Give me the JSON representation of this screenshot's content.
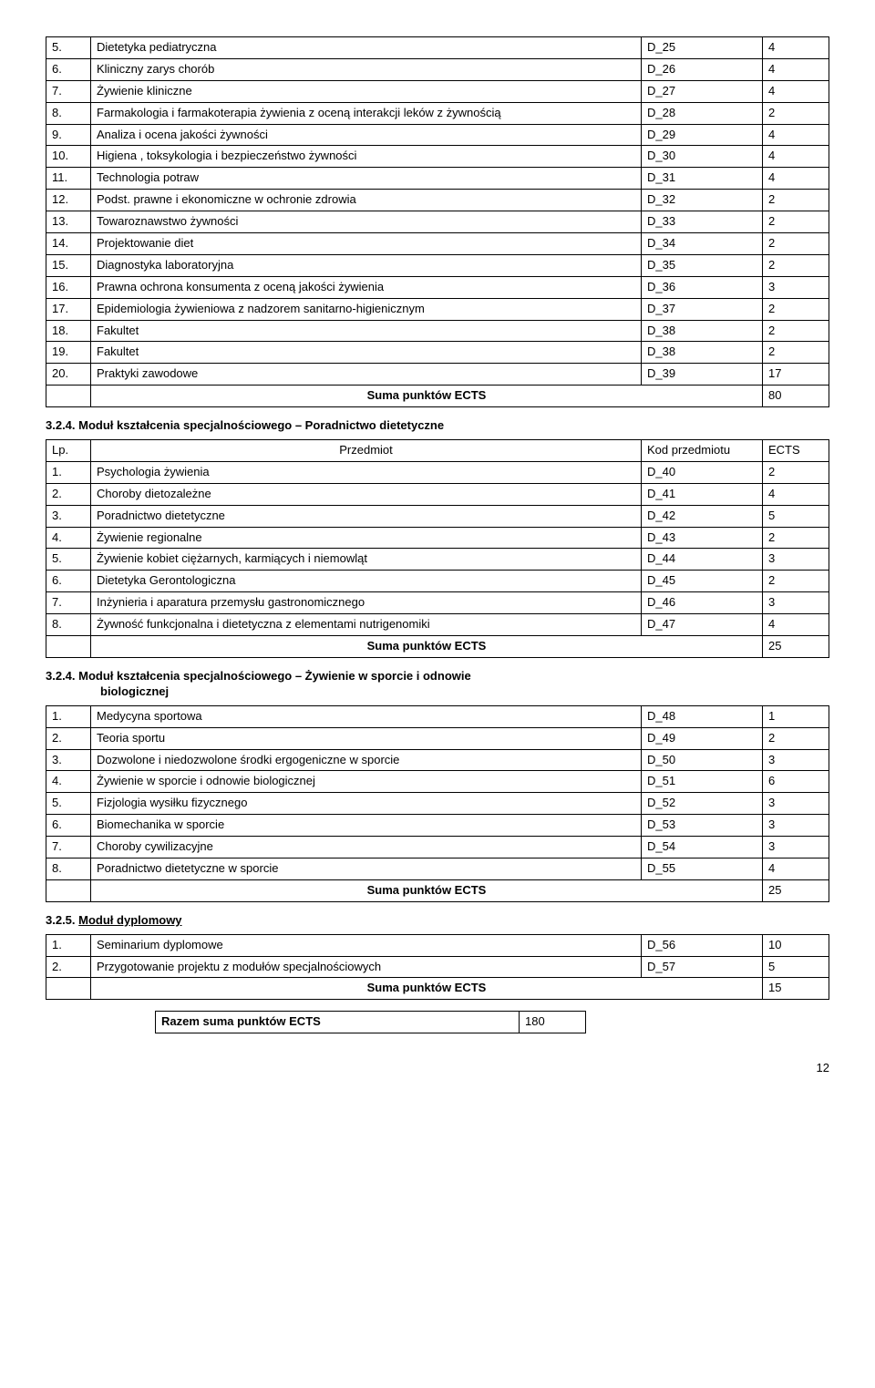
{
  "tables": {
    "t1": {
      "rows": [
        {
          "n": "5.",
          "name": "Dietetyka pediatryczna",
          "code": "D_25",
          "val": "4"
        },
        {
          "n": "6.",
          "name": "Kliniczny zarys chorób",
          "code": "D_26",
          "val": "4"
        },
        {
          "n": "7.",
          "name": "Żywienie kliniczne",
          "code": "D_27",
          "val": "4"
        },
        {
          "n": "8.",
          "name": "Farmakologia i farmakoterapia żywienia z oceną interakcji leków z żywnością",
          "code": "D_28",
          "val": "2"
        },
        {
          "n": "9.",
          "name": "Analiza i ocena jakości żywności",
          "code": "D_29",
          "val": "4"
        },
        {
          "n": "10.",
          "name": "Higiena , toksykologia i bezpieczeństwo żywności",
          "code": "D_30",
          "val": "4"
        },
        {
          "n": "11.",
          "name": "Technologia potraw",
          "code": "D_31",
          "val": "4"
        },
        {
          "n": "12.",
          "name": "Podst. prawne i ekonomiczne w ochronie zdrowia",
          "code": "D_32",
          "val": "2"
        },
        {
          "n": "13.",
          "name": "Towaroznawstwo żywności",
          "code": "D_33",
          "val": "2"
        },
        {
          "n": "14.",
          "name": "Projektowanie diet",
          "code": "D_34",
          "val": "2"
        },
        {
          "n": "15.",
          "name": "Diagnostyka laboratoryjna",
          "code": "D_35",
          "val": "2"
        },
        {
          "n": "16.",
          "name": "Prawna ochrona konsumenta z oceną jakości żywienia",
          "code": "D_36",
          "val": "3"
        },
        {
          "n": "17.",
          "name": "Epidemiologia żywieniowa z nadzorem sanitarno-higienicznym",
          "code": "D_37",
          "val": "2"
        },
        {
          "n": "18.",
          "name": "Fakultet",
          "code": "D_38",
          "val": "2"
        },
        {
          "n": "19.",
          "name": "Fakultet",
          "code": "D_38",
          "val": "2"
        },
        {
          "n": "20.",
          "name": "Praktyki zawodowe",
          "code": "D_39",
          "val": "17"
        }
      ],
      "sum_label": "Suma punktów ECTS",
      "sum_val": "80"
    },
    "t2": {
      "heading_prefix": "3.2.4.",
      "heading_rest": "Moduł kształcenia specjalnościowego – Poradnictwo dietetyczne",
      "header": {
        "lp": "Lp.",
        "przedmiot": "Przedmiot",
        "kod": "Kod przedmiotu",
        "ects": "ECTS"
      },
      "rows": [
        {
          "n": "1.",
          "name": "Psychologia żywienia",
          "code": "D_40",
          "val": "2"
        },
        {
          "n": "2.",
          "name": "Choroby dietozależne",
          "code": "D_41",
          "val": "4"
        },
        {
          "n": "3.",
          "name": "Poradnictwo dietetyczne",
          "code": "D_42",
          "val": "5"
        },
        {
          "n": "4.",
          "name": "Żywienie regionalne",
          "code": "D_43",
          "val": "2"
        },
        {
          "n": "5.",
          "name": "Żywienie kobiet ciężarnych, karmiących i niemowląt",
          "code": "D_44",
          "val": "3"
        },
        {
          "n": "6.",
          "name": "Dietetyka Gerontologiczna",
          "code": "D_45",
          "val": "2"
        },
        {
          "n": "7.",
          "name": "Inżynieria i aparatura przemysłu gastronomicznego",
          "code": "D_46",
          "val": "3"
        },
        {
          "n": "8.",
          "name": "Żywność funkcjonalna i dietetyczna z elementami nutrigenomiki",
          "code": "D_47",
          "val": "4"
        }
      ],
      "sum_label": "Suma punktów ECTS",
      "sum_val": "25"
    },
    "t3": {
      "heading_prefix": "3.2.4.",
      "heading_line1": "Moduł kształcenia specjalnościowego – Żywienie w sporcie i odnowie",
      "heading_line2": "biologicznej",
      "rows": [
        {
          "n": "1.",
          "name": "Medycyna sportowa",
          "code": "D_48",
          "val": "1"
        },
        {
          "n": "2.",
          "name": "Teoria sportu",
          "code": "D_49",
          "val": "2"
        },
        {
          "n": "3.",
          "name": "Dozwolone i niedozwolone środki ergogeniczne w sporcie",
          "code": "D_50",
          "val": "3"
        },
        {
          "n": "4.",
          "name": "Żywienie w sporcie i odnowie biologicznej",
          "code": "D_51",
          "val": "6"
        },
        {
          "n": "5.",
          "name": "Fizjologia wysiłku fizycznego",
          "code": "D_52",
          "val": "3"
        },
        {
          "n": "6.",
          "name": "Biomechanika w sporcie",
          "code": "D_53",
          "val": "3"
        },
        {
          "n": "7.",
          "name": "Choroby cywilizacyjne",
          "code": "D_54",
          "val": "3"
        },
        {
          "n": "8.",
          "name": "Poradnictwo dietetyczne w sporcie",
          "code": "D_55",
          "val": "4"
        }
      ],
      "sum_label": "Suma punktów ECTS",
      "sum_val": "25"
    },
    "t4": {
      "heading_prefix": "3.2.5.",
      "heading_rest": "Moduł dyplomowy",
      "rows": [
        {
          "n": "1.",
          "name": "Seminarium dyplomowe",
          "code": "D_56",
          "val": "10"
        },
        {
          "n": "2.",
          "name": "Przygotowanie projektu z modułów specjalnościowych",
          "code": "D_57",
          "val": "5"
        }
      ],
      "sum_label": "Suma punktów ECTS",
      "sum_val": "15"
    }
  },
  "razem": {
    "label": "Razem suma punktów ECTS",
    "val": "180"
  },
  "page_number": "12"
}
